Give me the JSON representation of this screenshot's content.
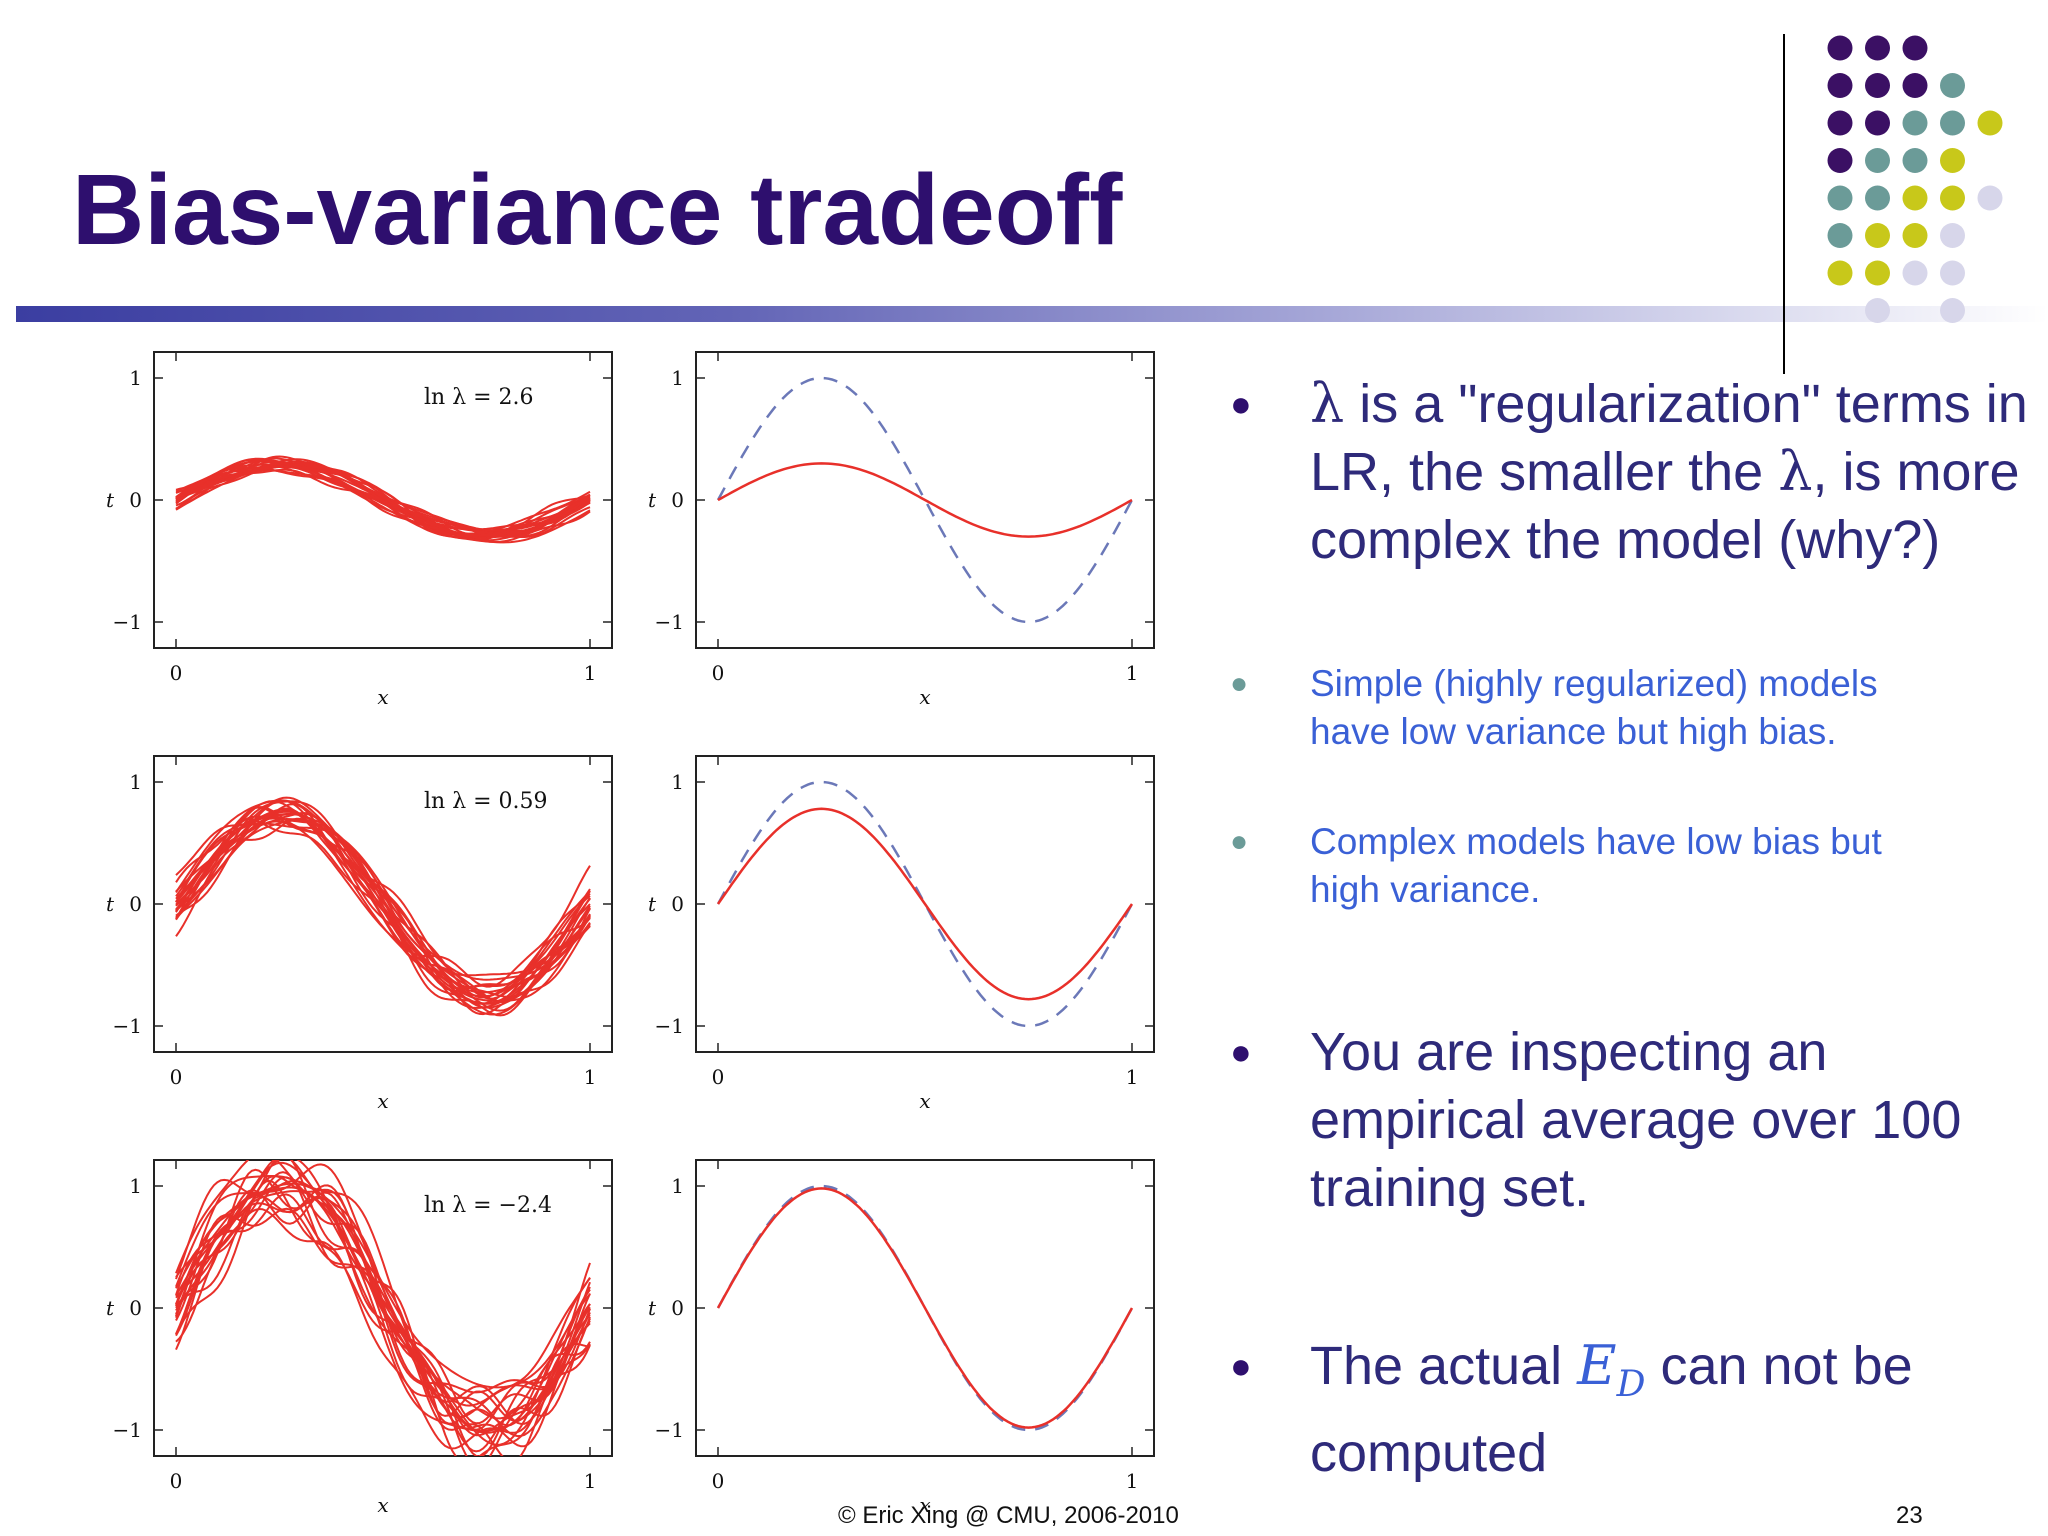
{
  "slide": {
    "title": "Bias-variance tradeoff",
    "footer_text": "© Eric Xing @ CMU, 2006-2010",
    "page_number": "23"
  },
  "colors": {
    "title": "#2e0f6e",
    "bullet_text": "#2e2a7a",
    "sub_bullet_text": "#3a60d6",
    "fit_red": "#e8302a",
    "truth_blue": "#6b78b8",
    "dot_purple": "#3b1064",
    "dot_teal": "#6b9b98",
    "dot_yellow": "#c8c81a",
    "dot_lilac": "#d7d6ea"
  },
  "bullets": [
    {
      "pre": "λ",
      "text": " is a \"regularization\" terms in LR, the smaller the ",
      "mid": "λ",
      "post": ", is more complex the model (why?)",
      "sub": [
        "Simple (highly regularized) models have low variance but high bias.",
        "Complex models have low bias but high variance."
      ]
    },
    {
      "text": "You are inspecting an empirical average over 100 training set."
    },
    {
      "pre": "The actual ",
      "ed_main": "E",
      "ed_sub": "D",
      "post": " can not be computed"
    }
  ],
  "chart_data": [
    {
      "type": "line",
      "panel": "left",
      "row": 1,
      "annotation": "ln λ = 2.6",
      "series": "many noisy regularized fits",
      "amplitude": 0.3,
      "noise": 0.05,
      "xlabel": "x",
      "ylabel": "t",
      "xlim": [
        0,
        1
      ],
      "ylim": [
        -1,
        1
      ],
      "xticks": [
        "0",
        "1"
      ],
      "yticks": [
        "−1",
        "0",
        "1"
      ]
    },
    {
      "type": "line",
      "panel": "right",
      "row": 1,
      "annotation": "",
      "series": [
        {
          "name": "average fit",
          "style": "solid red",
          "amplitude": 0.3
        },
        {
          "name": "true function",
          "style": "dashed blue",
          "amplitude": 1.0
        }
      ],
      "xlabel": "x",
      "ylabel": "t",
      "xlim": [
        0,
        1
      ],
      "ylim": [
        -1,
        1
      ],
      "xticks": [
        "0",
        "1"
      ],
      "yticks": [
        "−1",
        "0",
        "1"
      ]
    },
    {
      "type": "line",
      "panel": "left",
      "row": 2,
      "annotation": "ln λ = 0.59",
      "series": "many noisy regularized fits",
      "amplitude": 0.78,
      "noise": 0.13,
      "xlabel": "x",
      "ylabel": "t",
      "xlim": [
        0,
        1
      ],
      "ylim": [
        -1,
        1
      ],
      "xticks": [
        "0",
        "1"
      ],
      "yticks": [
        "−1",
        "0",
        "1"
      ]
    },
    {
      "type": "line",
      "panel": "right",
      "row": 2,
      "annotation": "",
      "series": [
        {
          "name": "average fit",
          "style": "solid red",
          "amplitude": 0.78
        },
        {
          "name": "true function",
          "style": "dashed blue",
          "amplitude": 1.0
        }
      ],
      "xlabel": "x",
      "ylabel": "t",
      "xlim": [
        0,
        1
      ],
      "ylim": [
        -1,
        1
      ],
      "xticks": [
        "0",
        "1"
      ],
      "yticks": [
        "−1",
        "0",
        "1"
      ]
    },
    {
      "type": "line",
      "panel": "left",
      "row": 3,
      "annotation": "ln λ = −2.4",
      "series": "many noisy regularized fits",
      "amplitude": 0.98,
      "noise": 0.3,
      "xlabel": "x",
      "ylabel": "t",
      "xlim": [
        0,
        1
      ],
      "ylim": [
        -1,
        1
      ],
      "xticks": [
        "0",
        "1"
      ],
      "yticks": [
        "−1",
        "0",
        "1"
      ]
    },
    {
      "type": "line",
      "panel": "right",
      "row": 3,
      "annotation": "",
      "series": [
        {
          "name": "average fit",
          "style": "solid red",
          "amplitude": 0.98
        },
        {
          "name": "true function",
          "style": "dashed blue",
          "amplitude": 1.0
        }
      ],
      "xlabel": "x",
      "ylabel": "t",
      "xlim": [
        0,
        1
      ],
      "ylim": [
        -1,
        1
      ],
      "xticks": [
        "0",
        "1"
      ],
      "yticks": [
        "−1",
        "0",
        "1"
      ]
    }
  ]
}
